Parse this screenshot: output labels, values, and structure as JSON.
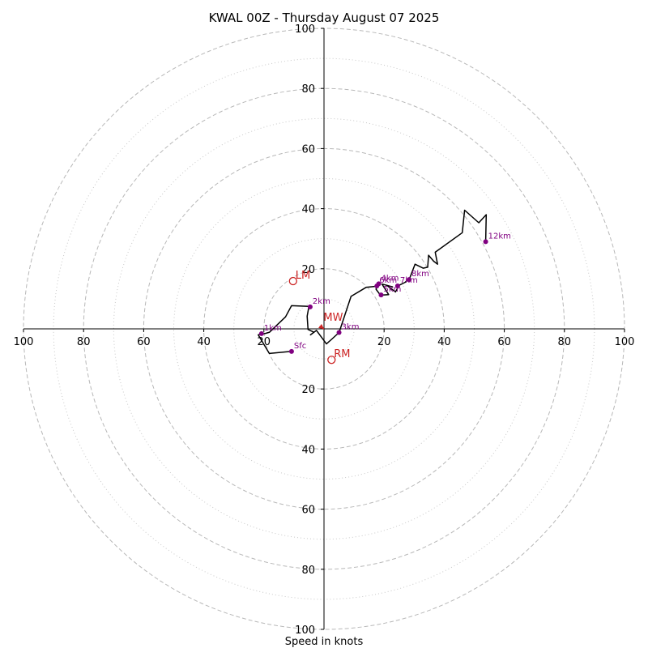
{
  "chart_data": {
    "type": "line",
    "title": "KWAL 00Z - Thursday August 07 2025",
    "xlabel": "Speed in knots",
    "ylabel": "",
    "xlim": [
      -100,
      100
    ],
    "ylim": [
      -100,
      100
    ],
    "rings_major": [
      20,
      40,
      60,
      80,
      100
    ],
    "rings_minor": [
      10,
      30,
      50,
      70,
      90
    ],
    "x_ticks": [
      {
        "value": -100,
        "label": "100"
      },
      {
        "value": -80,
        "label": "80"
      },
      {
        "value": -60,
        "label": "60"
      },
      {
        "value": -40,
        "label": "40"
      },
      {
        "value": -20,
        "label": "20"
      },
      {
        "value": 20,
        "label": "20"
      },
      {
        "value": 40,
        "label": "40"
      },
      {
        "value": 60,
        "label": "60"
      },
      {
        "value": 80,
        "label": "80"
      },
      {
        "value": 100,
        "label": "100"
      }
    ],
    "y_ticks": [
      {
        "value": 100,
        "label": "100"
      },
      {
        "value": 80,
        "label": "80"
      },
      {
        "value": 60,
        "label": "60"
      },
      {
        "value": 40,
        "label": "40"
      },
      {
        "value": 20,
        "label": "20"
      },
      {
        "value": -20,
        "label": "20"
      },
      {
        "value": -40,
        "label": "40"
      },
      {
        "value": -60,
        "label": "60"
      },
      {
        "value": -80,
        "label": "80"
      },
      {
        "value": -100,
        "label": "100"
      }
    ],
    "grid": true,
    "series": [
      {
        "color": "#000000",
        "points": [
          [
            -10.8,
            -7.5
          ],
          [
            -18.2,
            -8.2
          ],
          [
            -21.9,
            -2.0
          ],
          [
            -19.5,
            -1.5
          ],
          [
            -18.1,
            -1.1
          ],
          [
            -12.8,
            4.0
          ],
          [
            -10.8,
            7.7
          ],
          [
            -5.0,
            7.5
          ],
          [
            -5.6,
            4.2
          ],
          [
            -5.3,
            -0.2
          ],
          [
            -3.4,
            -1.1
          ],
          [
            -4.5,
            -2.0
          ],
          [
            -2.5,
            -0.5
          ],
          [
            0.8,
            -5.0
          ],
          [
            2.5,
            -3.5
          ],
          [
            5.0,
            -1.2
          ],
          [
            9.0,
            10.8
          ],
          [
            14.0,
            13.8
          ],
          [
            17.8,
            14.2
          ],
          [
            17.3,
            13.2
          ],
          [
            18.8,
            11.2
          ],
          [
            21.5,
            11.4
          ],
          [
            19.3,
            14.9
          ],
          [
            22.8,
            14.0
          ],
          [
            20.8,
            14.5
          ],
          [
            23.8,
            12.3
          ],
          [
            25.0,
            14.5
          ],
          [
            27.0,
            15.5
          ],
          [
            28.5,
            16.8
          ],
          [
            30.3,
            21.5
          ],
          [
            33.0,
            20.2
          ],
          [
            34.5,
            20.5
          ],
          [
            34.8,
            24.5
          ],
          [
            36.5,
            22.5
          ],
          [
            37.8,
            21.5
          ],
          [
            37.0,
            25.5
          ],
          [
            46.0,
            32.0
          ],
          [
            46.8,
            39.5
          ],
          [
            51.5,
            35.3
          ],
          [
            54.0,
            38.0
          ],
          [
            53.8,
            29.0
          ]
        ]
      }
    ],
    "height_markers": [
      {
        "label": "Sfc",
        "x": -10.8,
        "y": -7.5
      },
      {
        "label": "1km",
        "x": -20.8,
        "y": -1.6
      },
      {
        "label": "2km",
        "x": -4.6,
        "y": 7.3
      },
      {
        "label": "3km",
        "x": 5.0,
        "y": -1.2
      },
      {
        "label": "4km",
        "x": 18.2,
        "y": 15.0
      },
      {
        "label": "5km",
        "x": 19.0,
        "y": 11.3
      },
      {
        "label": "6km",
        "x": 17.6,
        "y": 14.3
      },
      {
        "label": "7km",
        "x": 24.5,
        "y": 14.3
      },
      {
        "label": "8km",
        "x": 28.3,
        "y": 16.4
      },
      {
        "label": "12km",
        "x": 53.8,
        "y": 29.0
      }
    ],
    "motion_markers": [
      {
        "label": "LM",
        "x": -10.3,
        "y": 15.9
      },
      {
        "label": "RM",
        "x": 2.5,
        "y": -10.3
      }
    ],
    "mean_wind": {
      "label": "MW",
      "x": -1.5,
      "y": 0.8,
      "colors": {
        "main": "#cc2222",
        "marker": "#800080",
        "path": "#000000"
      }
    }
  }
}
